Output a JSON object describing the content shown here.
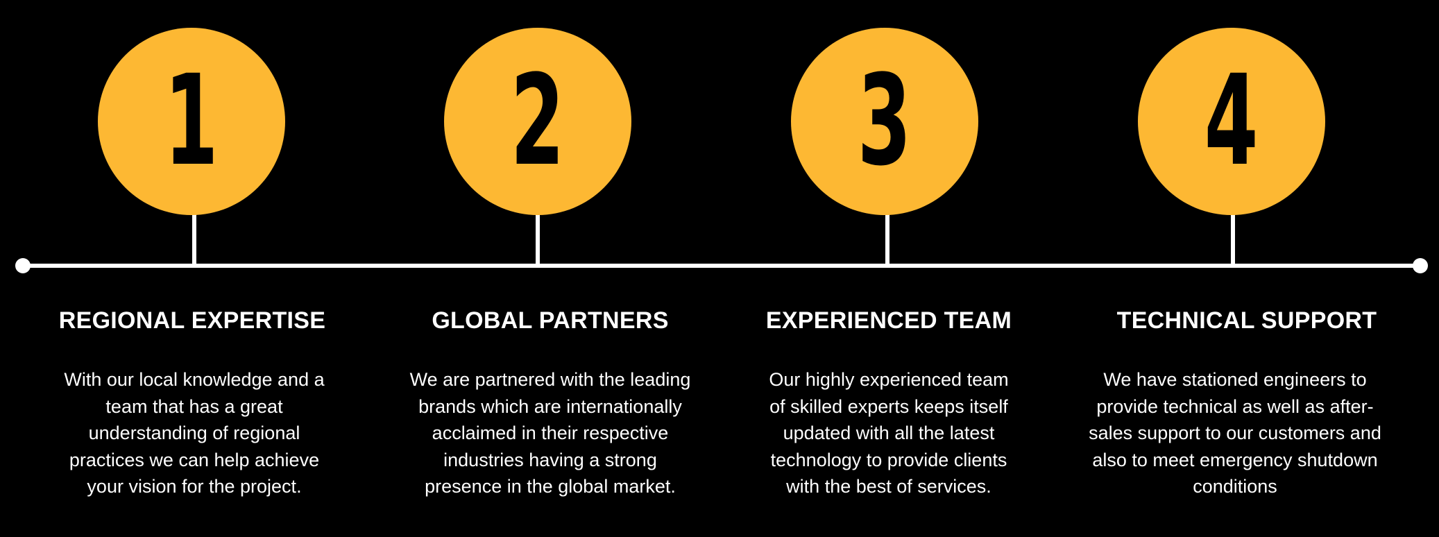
{
  "colors": {
    "background": "#000000",
    "accent": "#FDB833",
    "line": "#ffffff",
    "text": "#ffffff",
    "number": "#000000"
  },
  "steps": [
    {
      "number": "1",
      "title": "REGIONAL EXPERTISE",
      "desc_lines": [
        "With our local knowledge and a",
        "team that has a great",
        "understanding of regional",
        "practices we can help achieve",
        "your vision for the project."
      ]
    },
    {
      "number": "2",
      "title": "GLOBAL PARTNERS",
      "desc_lines": [
        "We are partnered with the leading",
        "brands which are internationally",
        "acclaimed in their respective",
        "industries having a strong",
        "presence in the global market."
      ]
    },
    {
      "number": "3",
      "title": "EXPERIENCED TEAM",
      "desc_lines": [
        "Our highly experienced team",
        "of skilled experts keeps itself",
        "updated with all the latest",
        "technology to provide clients",
        "with the best of services."
      ]
    },
    {
      "number": "4",
      "title": "TECHNICAL SUPPORT",
      "desc_lines": [
        "We have stationed engineers to",
        "provide technical as well as after-",
        "sales support to our customers and",
        "also to meet emergency shutdown",
        "conditions"
      ]
    }
  ]
}
